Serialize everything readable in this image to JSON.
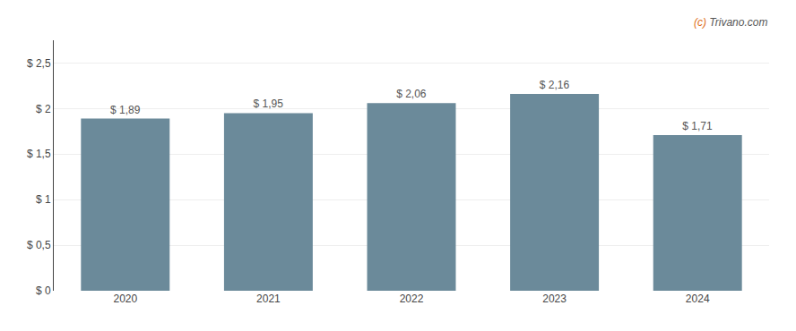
{
  "chart_data": {
    "type": "bar",
    "categories": [
      "2020",
      "2021",
      "2022",
      "2023",
      "2024"
    ],
    "values": [
      1.89,
      1.95,
      2.06,
      2.16,
      1.71
    ],
    "value_labels": [
      "$ 1,89",
      "$ 1,95",
      "$ 2,06",
      "$ 2,16",
      "$ 1,71"
    ],
    "color": "#6b8a9a",
    "ylim": [
      0,
      2.75
    ],
    "yticks": [
      {
        "value": 0,
        "label": "$ 0"
      },
      {
        "value": 0.5,
        "label": "$ 0,5"
      },
      {
        "value": 1.0,
        "label": "$ 1"
      },
      {
        "value": 1.5,
        "label": "$ 1,5"
      },
      {
        "value": 2.0,
        "label": "$ 2"
      },
      {
        "value": 2.5,
        "label": "$ 2,5"
      }
    ],
    "grid": true,
    "data_labels": true,
    "annotations": [
      {
        "text": "(c)",
        "color": "#e07020"
      },
      {
        "text": "Trivano.com",
        "color": "#555555"
      }
    ]
  }
}
